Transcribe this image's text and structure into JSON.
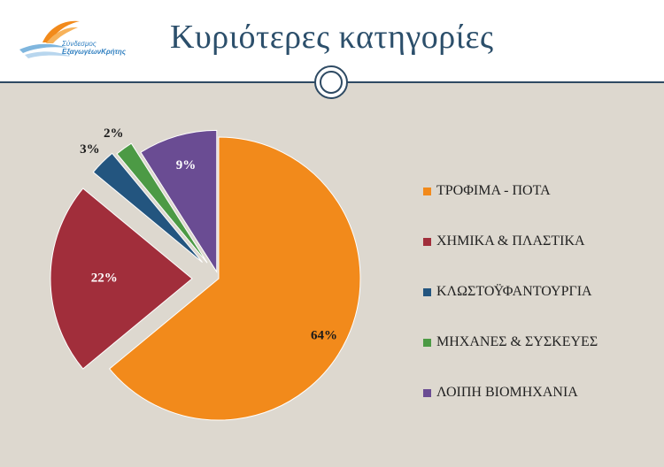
{
  "slide": {
    "title": "Κυριότερες κατηγορίες",
    "logo": {
      "line1": "Σύνδεσμος",
      "line2": "ΕξαγωγέωνΚρήτης",
      "icon": "orange-wing-logo-icon"
    }
  },
  "colors": {
    "title": "#2c4f6b",
    "divider": "#2e4a63",
    "background": "#ddd8cf"
  },
  "chart_data": {
    "type": "pie",
    "categories": [
      "ΤΡΟΦΙΜΑ - ΠΟΤΑ",
      "ΧΗΜΙΚΑ & ΠΛΑΣΤΙΚΑ",
      "ΚΛΩΣΤΟΫΦΑΝΤΟΥΡΓΙΑ",
      "ΜΗΧΑΝΕΣ & ΣΥΣΚΕΥΕΣ",
      "ΛΟΙΠΗ ΒΙΟΜΗΧΑΝΙΑ"
    ],
    "values": [
      64,
      22,
      3,
      2,
      9
    ],
    "labels": [
      "64%",
      "22%",
      "3%",
      "2%",
      "9%"
    ],
    "colors": [
      "#f28a1b",
      "#a12e3b",
      "#23557f",
      "#4c9a45",
      "#6a4c93"
    ],
    "exploded": true,
    "start_angle": "12 o'clock, clockwise",
    "legend": "right"
  }
}
